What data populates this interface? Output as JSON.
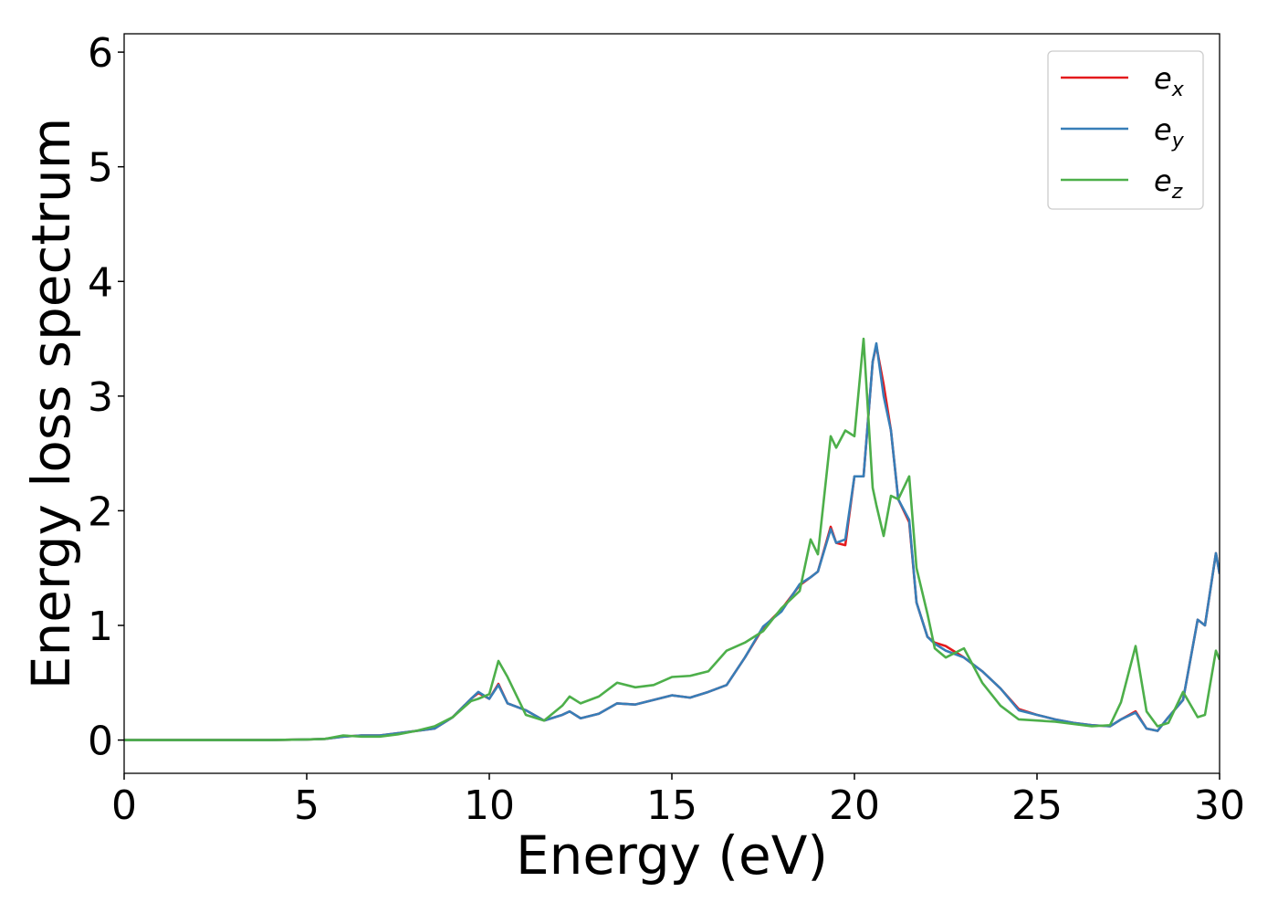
{
  "chart_data": {
    "type": "line",
    "x_label": "Energy (eV)",
    "y_label": "Energy loss spectrum",
    "x": [
      0,
      1,
      2,
      3,
      4,
      5,
      5.5,
      6,
      6.5,
      7,
      7.5,
      8,
      8.5,
      9,
      9.5,
      9.7,
      10,
      10.25,
      10.5,
      11,
      11.5,
      12,
      12.2,
      12.5,
      13,
      13.5,
      14,
      14.5,
      15,
      15.5,
      16,
      16.5,
      17,
      17.5,
      18,
      18.5,
      18.8,
      19,
      19.35,
      19.5,
      19.75,
      20,
      20.25,
      20.5,
      20.6,
      20.8,
      21,
      21.2,
      21.5,
      21.7,
      22,
      22.2,
      22.5,
      23,
      23.5,
      24,
      24.5,
      25,
      25.5,
      26,
      26.5,
      27,
      27.3,
      27.7,
      28,
      28.3,
      28.6,
      29,
      29.4,
      29.6,
      29.9,
      30
    ],
    "series": [
      {
        "name": "ex",
        "color": "#e41a1c",
        "values": [
          0,
          0,
          0,
          0,
          0,
          0.005,
          0.01,
          0.03,
          0.04,
          0.04,
          0.06,
          0.08,
          0.1,
          0.2,
          0.36,
          0.41,
          0.36,
          0.49,
          0.32,
          0.26,
          0.17,
          0.22,
          0.25,
          0.19,
          0.23,
          0.32,
          0.31,
          0.35,
          0.39,
          0.37,
          0.42,
          0.48,
          0.72,
          0.98,
          1.14,
          1.35,
          1.42,
          1.47,
          1.86,
          1.72,
          1.7,
          2.3,
          2.3,
          3.3,
          3.44,
          3.1,
          2.7,
          2.1,
          1.9,
          1.2,
          0.9,
          0.85,
          0.82,
          0.72,
          0.6,
          0.45,
          0.27,
          0.22,
          0.18,
          0.15,
          0.13,
          0.12,
          0.18,
          0.25,
          0.1,
          0.08,
          0.2,
          0.35,
          1.05,
          1.0,
          1.63,
          1.45
        ]
      },
      {
        "name": "ey",
        "color": "#377eb8",
        "values": [
          0,
          0,
          0,
          0,
          0,
          0.005,
          0.01,
          0.03,
          0.04,
          0.04,
          0.06,
          0.08,
          0.1,
          0.2,
          0.36,
          0.42,
          0.36,
          0.48,
          0.32,
          0.26,
          0.17,
          0.22,
          0.25,
          0.19,
          0.23,
          0.32,
          0.31,
          0.35,
          0.39,
          0.37,
          0.42,
          0.48,
          0.72,
          0.99,
          1.12,
          1.36,
          1.42,
          1.47,
          1.84,
          1.72,
          1.75,
          2.3,
          2.3,
          3.3,
          3.46,
          3.0,
          2.7,
          2.1,
          1.92,
          1.2,
          0.9,
          0.84,
          0.78,
          0.72,
          0.6,
          0.45,
          0.26,
          0.22,
          0.18,
          0.15,
          0.13,
          0.12,
          0.18,
          0.24,
          0.1,
          0.08,
          0.2,
          0.35,
          1.05,
          1.0,
          1.63,
          1.45
        ]
      },
      {
        "name": "ez",
        "color": "#4daf4a",
        "values": [
          0,
          0,
          0,
          0,
          0,
          0.005,
          0.01,
          0.04,
          0.03,
          0.03,
          0.05,
          0.08,
          0.12,
          0.2,
          0.34,
          0.36,
          0.4,
          0.69,
          0.55,
          0.22,
          0.17,
          0.3,
          0.38,
          0.32,
          0.38,
          0.5,
          0.46,
          0.48,
          0.55,
          0.56,
          0.6,
          0.78,
          0.85,
          0.95,
          1.15,
          1.3,
          1.75,
          1.62,
          2.65,
          2.55,
          2.7,
          2.65,
          3.5,
          2.2,
          2.05,
          1.78,
          2.13,
          2.1,
          2.3,
          1.5,
          1.1,
          0.8,
          0.72,
          0.8,
          0.5,
          0.3,
          0.18,
          0.17,
          0.16,
          0.14,
          0.12,
          0.13,
          0.33,
          0.82,
          0.25,
          0.12,
          0.15,
          0.42,
          0.2,
          0.22,
          0.78,
          0.7
        ]
      }
    ],
    "xlim": [
      0,
      30
    ],
    "xticks": [
      0,
      5,
      10,
      15,
      20,
      25,
      30
    ],
    "ylim": [
      -0.29,
      6.16
    ],
    "yticks": [
      0,
      1,
      2,
      3,
      4,
      5,
      6
    ],
    "legend": "upper right"
  }
}
